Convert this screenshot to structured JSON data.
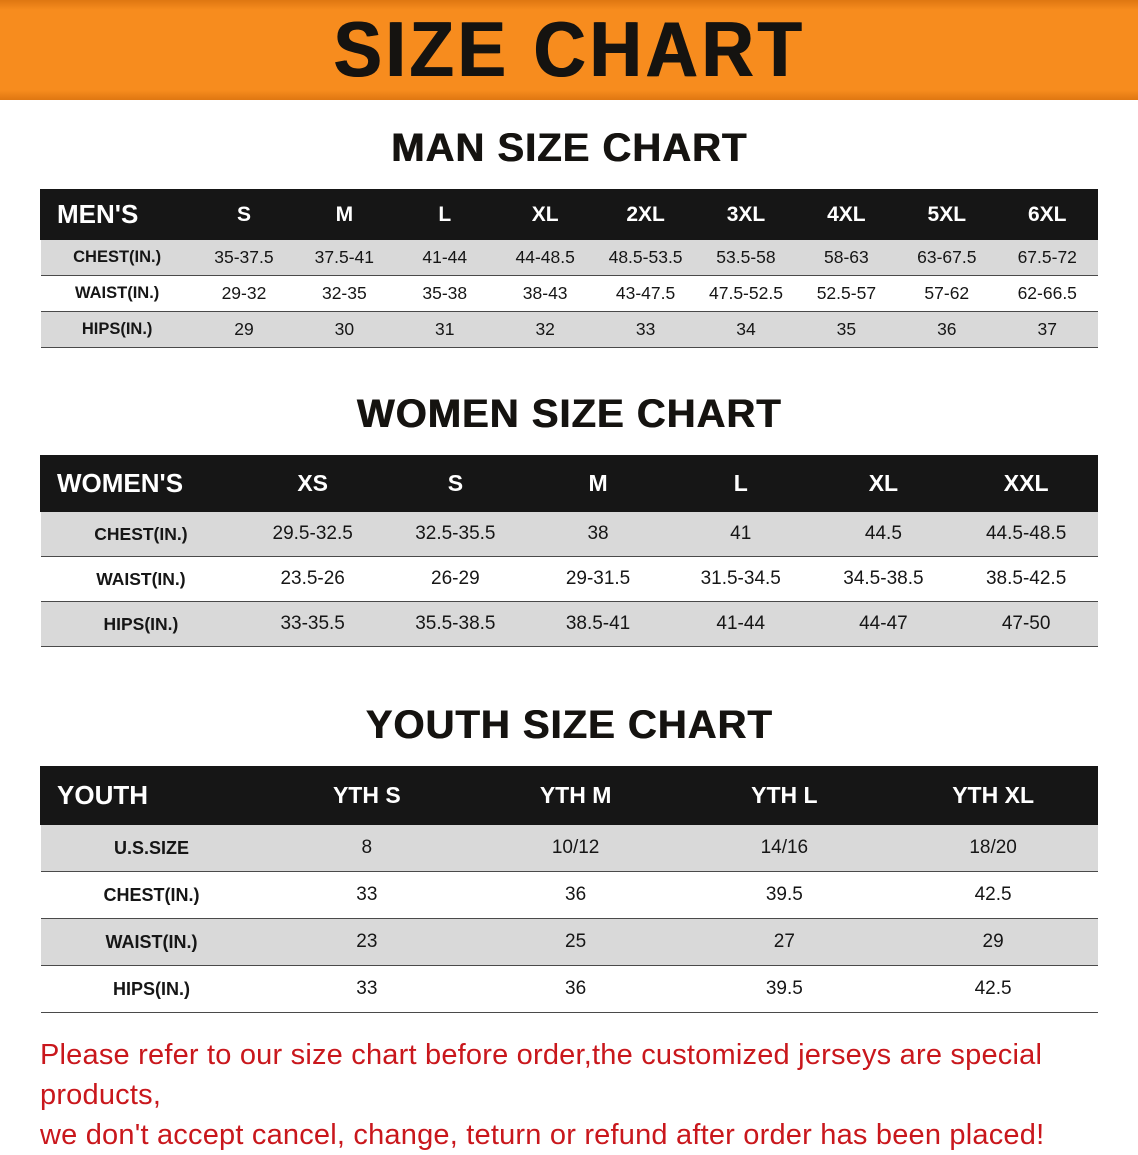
{
  "banner": {
    "title": "SIZE CHART",
    "bg_color": "#f78c1e",
    "text_color": "#151310"
  },
  "colors": {
    "table_header_bg": "#161616",
    "table_header_text": "#ffffff",
    "row_alt_gray": "#d9d9d9",
    "footer_red": "#c9171c"
  },
  "chart_data": [
    {
      "type": "table",
      "title": "MAN SIZE CHART",
      "header": [
        "MEN'S",
        "S",
        "M",
        "L",
        "XL",
        "2XL",
        "3XL",
        "4XL",
        "5XL",
        "6XL"
      ],
      "rows": [
        {
          "label": "CHEST(IN.)",
          "values": [
            "35-37.5",
            "37.5-41",
            "41-44",
            "44-48.5",
            "48.5-53.5",
            "53.5-58",
            "58-63",
            "63-67.5",
            "67.5-72"
          ]
        },
        {
          "label": "WAIST(IN.)",
          "values": [
            "29-32",
            "32-35",
            "35-38",
            "38-43",
            "43-47.5",
            "47.5-52.5",
            "52.5-57",
            "57-62",
            "62-66.5"
          ]
        },
        {
          "label": "HIPS(IN.)",
          "values": [
            "29",
            "30",
            "31",
            "32",
            "33",
            "34",
            "35",
            "36",
            "37"
          ]
        }
      ]
    },
    {
      "type": "table",
      "title": "WOMEN SIZE CHART",
      "header": [
        "WOMEN'S",
        "XS",
        "S",
        "M",
        "L",
        "XL",
        "XXL"
      ],
      "rows": [
        {
          "label": "CHEST(IN.)",
          "values": [
            "29.5-32.5",
            "32.5-35.5",
            "38",
            "41",
            "44.5",
            "44.5-48.5"
          ]
        },
        {
          "label": "WAIST(IN.)",
          "values": [
            "23.5-26",
            "26-29",
            "29-31.5",
            "31.5-34.5",
            "34.5-38.5",
            "38.5-42.5"
          ]
        },
        {
          "label": "HIPS(IN.)",
          "values": [
            "33-35.5",
            "35.5-38.5",
            "38.5-41",
            "41-44",
            "44-47",
            "47-50"
          ]
        }
      ]
    },
    {
      "type": "table",
      "title": "YOUTH SIZE CHART",
      "header": [
        "YOUTH",
        "YTH S",
        "YTH M",
        "YTH L",
        "YTH XL"
      ],
      "rows": [
        {
          "label": "U.S.SIZE",
          "values": [
            "8",
            "10/12",
            "14/16",
            "18/20"
          ]
        },
        {
          "label": "CHEST(IN.)",
          "values": [
            "33",
            "36",
            "39.5",
            "42.5"
          ]
        },
        {
          "label": "WAIST(IN.)",
          "values": [
            "23",
            "25",
            "27",
            "29"
          ]
        },
        {
          "label": "HIPS(IN.)",
          "values": [
            "33",
            "36",
            "39.5",
            "42.5"
          ]
        }
      ]
    }
  ],
  "footer": {
    "lines": [
      "Please refer to our size chart before order,the customized jerseys are special products,",
      "we don't accept cancel, change, teturn or refund after order has been placed!"
    ]
  }
}
